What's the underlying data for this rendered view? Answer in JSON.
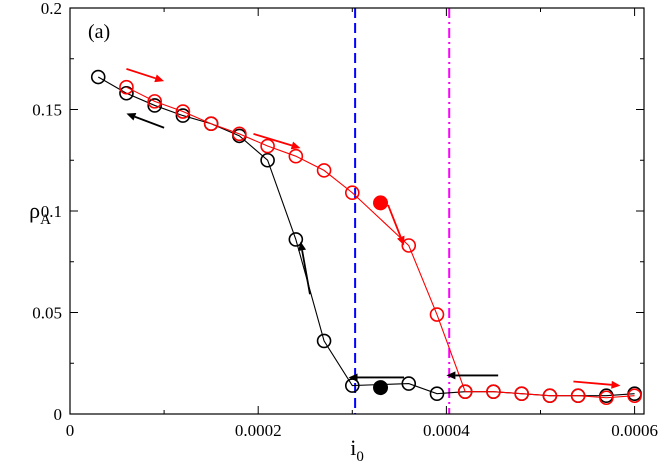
{
  "chart_data": {
    "type": "scatter",
    "panel_label": "(a)",
    "xlabel": {
      "main": "i",
      "sub": "0"
    },
    "ylabel": {
      "main": "ρ",
      "sub": "A"
    },
    "xlim": [
      0,
      0.00061
    ],
    "ylim": [
      0,
      0.2
    ],
    "x_ticks": [
      0,
      0.0002,
      0.0004,
      0.0006
    ],
    "x_tick_labels": [
      "0",
      "0.0002",
      "0.0004",
      "0.0006"
    ],
    "y_ticks": [
      0,
      0.05,
      0.1,
      0.15,
      0.2
    ],
    "y_tick_labels": [
      "0",
      "0.05",
      "0.1",
      "0.15",
      "0.2"
    ],
    "grid": false,
    "series": [
      {
        "color": "#000000",
        "x": [
          3e-05,
          6e-05,
          9e-05,
          0.00012,
          0.00015,
          0.00018,
          0.00021,
          0.00024,
          0.00027,
          0.0003,
          0.00036,
          0.00039,
          0.00042,
          0.00045,
          0.00048,
          0.00051,
          0.00054,
          0.00057,
          0.0006
        ],
        "y": [
          0.166,
          0.158,
          0.152,
          0.147,
          0.143,
          0.137,
          0.125,
          0.086,
          0.036,
          0.014,
          0.015,
          0.01,
          0.011,
          0.011,
          0.01,
          0.009,
          0.009,
          0.009,
          0.01
        ]
      },
      {
        "color": "#ff0000",
        "x": [
          6e-05,
          9e-05,
          0.00012,
          0.00015,
          0.00018,
          0.00021,
          0.00024,
          0.00027,
          0.0003,
          0.00036,
          0.00039,
          0.00042,
          0.00045,
          0.00048,
          0.00051,
          0.00054,
          0.00057,
          0.0006
        ],
        "y": [
          0.161,
          0.154,
          0.149,
          0.143,
          0.138,
          0.132,
          0.127,
          0.12,
          0.109,
          0.083,
          0.049,
          0.011,
          0.011,
          0.01,
          0.009,
          0.009,
          0.008,
          0.009
        ]
      }
    ],
    "filled_points": [
      {
        "x": 0.00033,
        "y": 0.013,
        "color": "#000000"
      },
      {
        "x": 0.00033,
        "y": 0.104,
        "color": "#ff0000"
      }
    ],
    "vertical_lines": [
      {
        "x": 0.000303,
        "color": "#0000ff",
        "style": "dashed"
      },
      {
        "x": 0.000403,
        "color": "#ff00ff",
        "style": "dash-dot"
      }
    ],
    "arrows": [
      {
        "from": [
          6e-05,
          0.17
        ],
        "to": [
          0.0001,
          0.164
        ],
        "color": "#ff0000"
      },
      {
        "from": [
          0.0001,
          0.141
        ],
        "to": [
          6e-05,
          0.148
        ],
        "color": "#000000"
      },
      {
        "from": [
          0.000195,
          0.138
        ],
        "to": [
          0.000245,
          0.131
        ],
        "color": "#ff0000"
      },
      {
        "from": [
          0.000255,
          0.059
        ],
        "to": [
          0.000245,
          0.085
        ],
        "color": "#000000"
      },
      {
        "from": [
          0.000338,
          0.103
        ],
        "to": [
          0.000355,
          0.083
        ],
        "color": "#ff0000"
      },
      {
        "from": [
          0.000355,
          0.018
        ],
        "to": [
          0.000296,
          0.018
        ],
        "color": "#000000"
      },
      {
        "from": [
          0.000455,
          0.019
        ],
        "to": [
          0.0004,
          0.019
        ],
        "color": "#000000"
      },
      {
        "from": [
          0.000535,
          0.016
        ],
        "to": [
          0.000585,
          0.014
        ],
        "color": "#ff0000"
      }
    ]
  }
}
